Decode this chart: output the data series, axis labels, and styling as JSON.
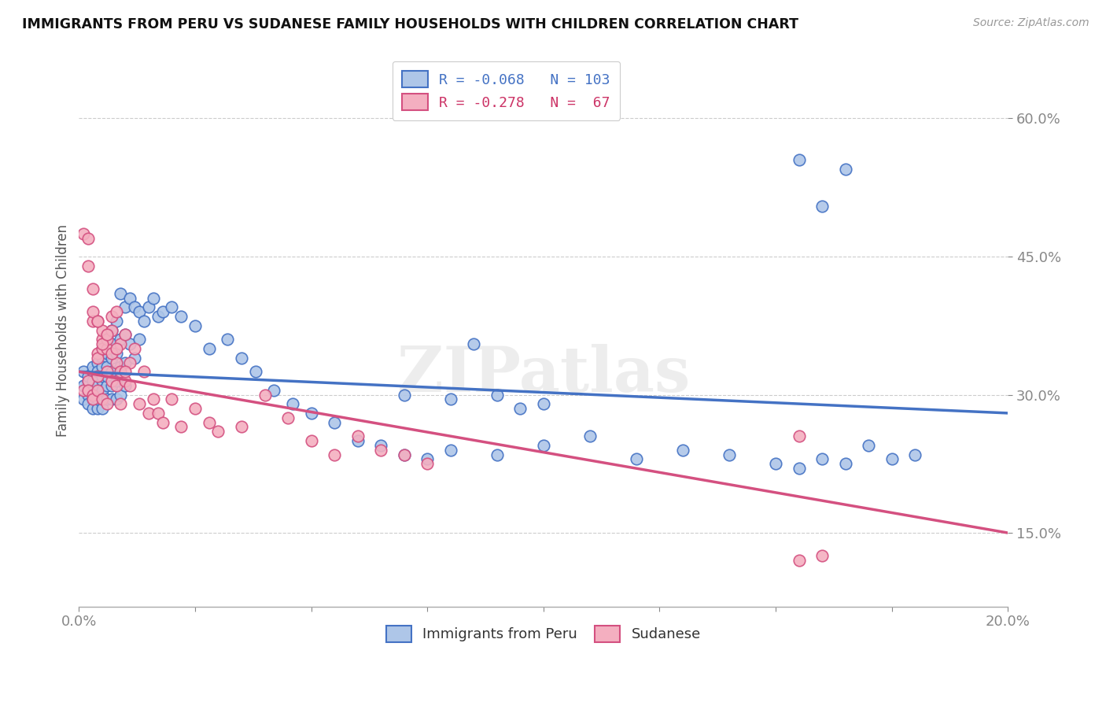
{
  "title": "IMMIGRANTS FROM PERU VS SUDANESE FAMILY HOUSEHOLDS WITH CHILDREN CORRELATION CHART",
  "source": "Source: ZipAtlas.com",
  "ylabel": "Family Households with Children",
  "y_tick_vals": [
    0.15,
    0.3,
    0.45,
    0.6
  ],
  "xlim": [
    0.0,
    0.2
  ],
  "ylim": [
    0.07,
    0.67
  ],
  "peru_R": -0.068,
  "peru_N": 103,
  "sudan_R": -0.278,
  "sudan_N": 67,
  "peru_color": "#aec6e8",
  "sudan_color": "#f4afc0",
  "peru_line_color": "#4472c4",
  "sudan_line_color": "#d45080",
  "legend_label_peru": "Immigrants from Peru",
  "legend_label_sudan": "Sudanese",
  "watermark": "ZIPatlas",
  "background_color": "#ffffff",
  "peru_scatter_x": [
    0.001,
    0.001,
    0.001,
    0.002,
    0.002,
    0.002,
    0.002,
    0.002,
    0.003,
    0.003,
    0.003,
    0.003,
    0.003,
    0.003,
    0.003,
    0.004,
    0.004,
    0.004,
    0.004,
    0.004,
    0.004,
    0.004,
    0.005,
    0.005,
    0.005,
    0.005,
    0.005,
    0.005,
    0.005,
    0.005,
    0.006,
    0.006,
    0.006,
    0.006,
    0.006,
    0.006,
    0.007,
    0.007,
    0.007,
    0.007,
    0.007,
    0.007,
    0.008,
    0.008,
    0.008,
    0.008,
    0.009,
    0.009,
    0.009,
    0.009,
    0.01,
    0.01,
    0.01,
    0.01,
    0.011,
    0.011,
    0.012,
    0.012,
    0.013,
    0.013,
    0.014,
    0.015,
    0.016,
    0.017,
    0.018,
    0.02,
    0.022,
    0.025,
    0.028,
    0.032,
    0.035,
    0.038,
    0.042,
    0.046,
    0.05,
    0.055,
    0.06,
    0.065,
    0.07,
    0.075,
    0.08,
    0.09,
    0.1,
    0.11,
    0.12,
    0.13,
    0.14,
    0.15,
    0.155,
    0.16,
    0.165,
    0.17,
    0.175,
    0.18,
    0.155,
    0.16,
    0.165,
    0.07,
    0.08,
    0.085,
    0.09,
    0.095,
    0.1
  ],
  "peru_scatter_y": [
    0.295,
    0.31,
    0.325,
    0.3,
    0.315,
    0.29,
    0.305,
    0.32,
    0.31,
    0.295,
    0.325,
    0.3,
    0.315,
    0.285,
    0.33,
    0.32,
    0.3,
    0.335,
    0.285,
    0.31,
    0.295,
    0.325,
    0.34,
    0.315,
    0.295,
    0.33,
    0.305,
    0.35,
    0.285,
    0.32,
    0.36,
    0.33,
    0.295,
    0.31,
    0.345,
    0.32,
    0.37,
    0.34,
    0.31,
    0.355,
    0.325,
    0.295,
    0.38,
    0.345,
    0.315,
    0.295,
    0.41,
    0.36,
    0.33,
    0.3,
    0.395,
    0.365,
    0.335,
    0.31,
    0.405,
    0.355,
    0.395,
    0.34,
    0.39,
    0.36,
    0.38,
    0.395,
    0.405,
    0.385,
    0.39,
    0.395,
    0.385,
    0.375,
    0.35,
    0.36,
    0.34,
    0.325,
    0.305,
    0.29,
    0.28,
    0.27,
    0.25,
    0.245,
    0.235,
    0.23,
    0.24,
    0.235,
    0.245,
    0.255,
    0.23,
    0.24,
    0.235,
    0.225,
    0.22,
    0.23,
    0.225,
    0.245,
    0.23,
    0.235,
    0.555,
    0.505,
    0.545,
    0.3,
    0.295,
    0.355,
    0.3,
    0.285,
    0.29
  ],
  "sudan_scatter_x": [
    0.001,
    0.001,
    0.002,
    0.002,
    0.002,
    0.003,
    0.003,
    0.003,
    0.003,
    0.004,
    0.004,
    0.004,
    0.004,
    0.004,
    0.005,
    0.005,
    0.005,
    0.005,
    0.006,
    0.006,
    0.006,
    0.006,
    0.007,
    0.007,
    0.007,
    0.008,
    0.008,
    0.008,
    0.009,
    0.009,
    0.01,
    0.01,
    0.011,
    0.011,
    0.012,
    0.013,
    0.014,
    0.015,
    0.016,
    0.017,
    0.018,
    0.02,
    0.022,
    0.025,
    0.028,
    0.03,
    0.035,
    0.04,
    0.045,
    0.05,
    0.055,
    0.06,
    0.065,
    0.07,
    0.075,
    0.002,
    0.003,
    0.004,
    0.005,
    0.006,
    0.007,
    0.008,
    0.009,
    0.01,
    0.155,
    0.16,
    0.155
  ],
  "sudan_scatter_y": [
    0.305,
    0.475,
    0.315,
    0.47,
    0.305,
    0.415,
    0.3,
    0.295,
    0.38,
    0.345,
    0.305,
    0.32,
    0.38,
    0.34,
    0.36,
    0.35,
    0.295,
    0.37,
    0.35,
    0.325,
    0.29,
    0.36,
    0.385,
    0.315,
    0.37,
    0.39,
    0.335,
    0.31,
    0.355,
    0.29,
    0.365,
    0.315,
    0.335,
    0.31,
    0.35,
    0.29,
    0.325,
    0.28,
    0.295,
    0.28,
    0.27,
    0.295,
    0.265,
    0.285,
    0.27,
    0.26,
    0.265,
    0.3,
    0.275,
    0.25,
    0.235,
    0.255,
    0.24,
    0.235,
    0.225,
    0.44,
    0.39,
    0.38,
    0.355,
    0.365,
    0.345,
    0.35,
    0.325,
    0.325,
    0.12,
    0.125,
    0.255
  ]
}
